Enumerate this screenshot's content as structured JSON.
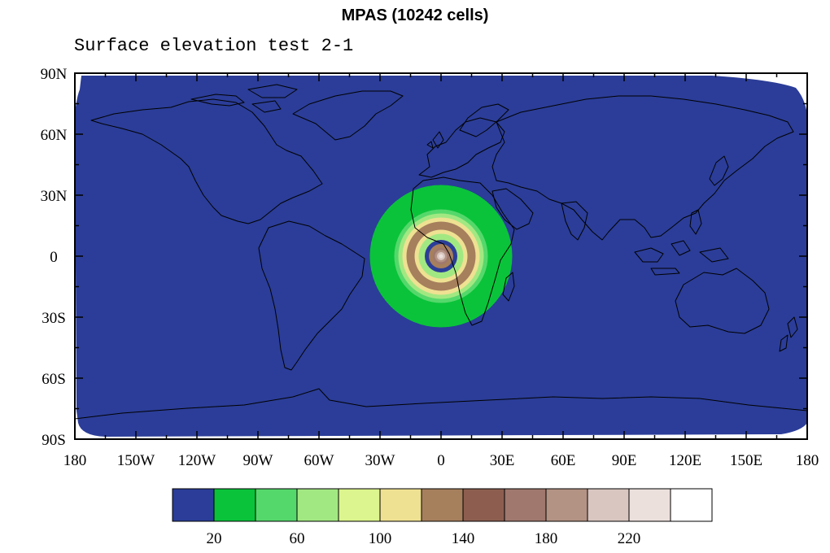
{
  "title": "MPAS (10242 cells)",
  "subtitle": "Surface elevation test 2-1",
  "map": {
    "ocean_color": "#2b3d98",
    "background": "#ffffff"
  },
  "chart_data": {
    "type": "heatmap",
    "projection": "cylindrical-equidistant",
    "lon_ticks": [
      "180",
      "150W",
      "120W",
      "90W",
      "60W",
      "30W",
      "0",
      "30E",
      "60E",
      "90E",
      "120E",
      "150E",
      "180"
    ],
    "lat_ticks": [
      "90N",
      "60N",
      "30N",
      "0",
      "30S",
      "60S",
      "90S"
    ],
    "feature": {
      "center_lon": 0,
      "center_lat": 0,
      "description": "concentric elevation rings"
    },
    "rings": [
      {
        "radius_deg": 35,
        "value_bin": 1,
        "color": "#0ac33a"
      },
      {
        "radius_deg": 23,
        "value_bin": 2,
        "color": "#55d86b"
      },
      {
        "radius_deg": 21,
        "value_bin": 3,
        "color": "#a2e882"
      },
      {
        "radius_deg": 19,
        "value_bin": 5,
        "color": "#efe192"
      },
      {
        "radius_deg": 17,
        "value_bin": 6,
        "color": "#a67f5d"
      },
      {
        "radius_deg": 13,
        "value_bin": 5,
        "color": "#efe192"
      },
      {
        "radius_deg": 11,
        "value_bin": 3,
        "color": "#a2e882"
      },
      {
        "radius_deg": 8,
        "value_bin": 0,
        "color": "#2b3d98"
      },
      {
        "radius_deg": 6,
        "value_bin": 6,
        "color": "#a67f5d"
      },
      {
        "radius_deg": 4,
        "value_bin": 8,
        "color": "#a0786e"
      },
      {
        "radius_deg": 3,
        "value_bin": 9,
        "color": "#b39384"
      },
      {
        "radius_deg": 2,
        "value_bin": 10,
        "color": "#d9c6c0"
      },
      {
        "radius_deg": 1,
        "value_bin": 11,
        "color": "#ece0dd"
      }
    ],
    "colorbar": {
      "colors": [
        "#2b3d98",
        "#0ac33a",
        "#55d86b",
        "#a2e882",
        "#dcf58e",
        "#efe192",
        "#a67f5d",
        "#8d5e50",
        "#a0786e",
        "#b39384",
        "#d9c6c0",
        "#ece0dd",
        "#ffffff"
      ],
      "labels": [
        {
          "after_box": 1,
          "text": "20"
        },
        {
          "after_box": 3,
          "text": "60"
        },
        {
          "after_box": 5,
          "text": "100"
        },
        {
          "after_box": 7,
          "text": "140"
        },
        {
          "after_box": 9,
          "text": "180"
        },
        {
          "after_box": 11,
          "text": "220"
        }
      ]
    }
  }
}
